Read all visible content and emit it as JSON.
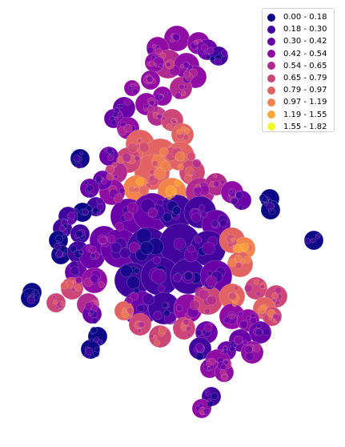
{
  "legend": {
    "placement": "top-right",
    "items": [
      {
        "label": "0.00 - 0.18",
        "color": "#0d0887"
      },
      {
        "label": "0.18 - 0.30",
        "color": "#41049d"
      },
      {
        "label": "0.30 - 0.42",
        "color": "#6a00a8"
      },
      {
        "label": "0.42 - 0.54",
        "color": "#8f0da4"
      },
      {
        "label": "0.54 - 0.65",
        "color": "#b12a90"
      },
      {
        "label": "0.65 - 0.79",
        "color": "#cc4778"
      },
      {
        "label": "0.79 - 0.97",
        "color": "#e16462"
      },
      {
        "label": "0.97 - 1.19",
        "color": "#f2844b"
      },
      {
        "label": "1.19 - 1.55",
        "color": "#fca636"
      },
      {
        "label": "1.55 - 1.82",
        "color": "#f0f921"
      }
    ]
  },
  "map": {
    "type": "choropleth",
    "colormap": "plasma",
    "background": "#ffffff"
  }
}
